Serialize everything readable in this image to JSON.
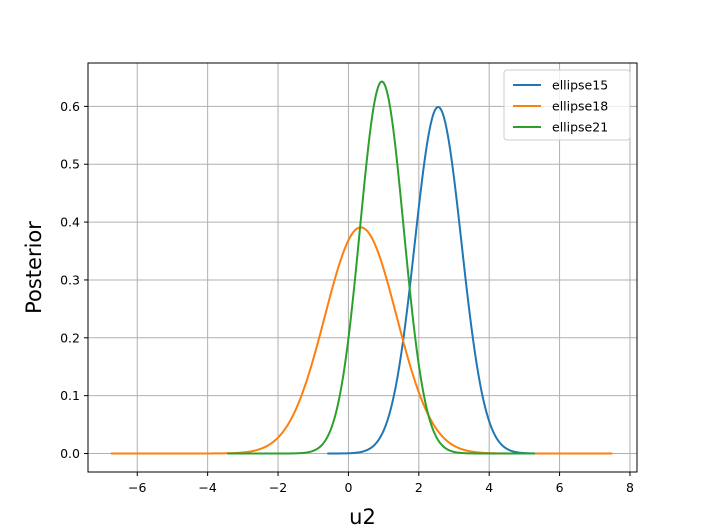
{
  "chart_data": {
    "type": "line",
    "title": "",
    "xlabel": "u2",
    "ylabel": "Posterior",
    "xlim": [
      -7.4,
      8.2
    ],
    "ylim": [
      -0.032,
      0.675
    ],
    "xticks": [
      -6,
      -4,
      -2,
      0,
      2,
      4,
      6,
      8
    ],
    "xtick_labels": [
      "−6",
      "−4",
      "−2",
      "0",
      "2",
      "4",
      "6",
      "8"
    ],
    "yticks": [
      0.0,
      0.1,
      0.2,
      0.3,
      0.4,
      0.5,
      0.6
    ],
    "ytick_labels": [
      "0.0",
      "0.1",
      "0.2",
      "0.3",
      "0.4",
      "0.5",
      "0.6"
    ],
    "grid": true,
    "legend_position": "top-right",
    "series": [
      {
        "name": "ellipse15",
        "color": "#1f77b4",
        "mean": 2.55,
        "std": 0.665,
        "peak": 0.599,
        "x_range": [
          -0.6,
          5.3
        ]
      },
      {
        "name": "ellipse18",
        "color": "#ff7f0e",
        "mean": 0.35,
        "std": 1.02,
        "peak": 0.391,
        "x_range": [
          -6.75,
          7.5
        ]
      },
      {
        "name": "ellipse21",
        "color": "#2ca02c",
        "mean": 0.95,
        "std": 0.62,
        "peak": 0.643,
        "x_range": [
          -3.45,
          5.3
        ]
      }
    ]
  }
}
